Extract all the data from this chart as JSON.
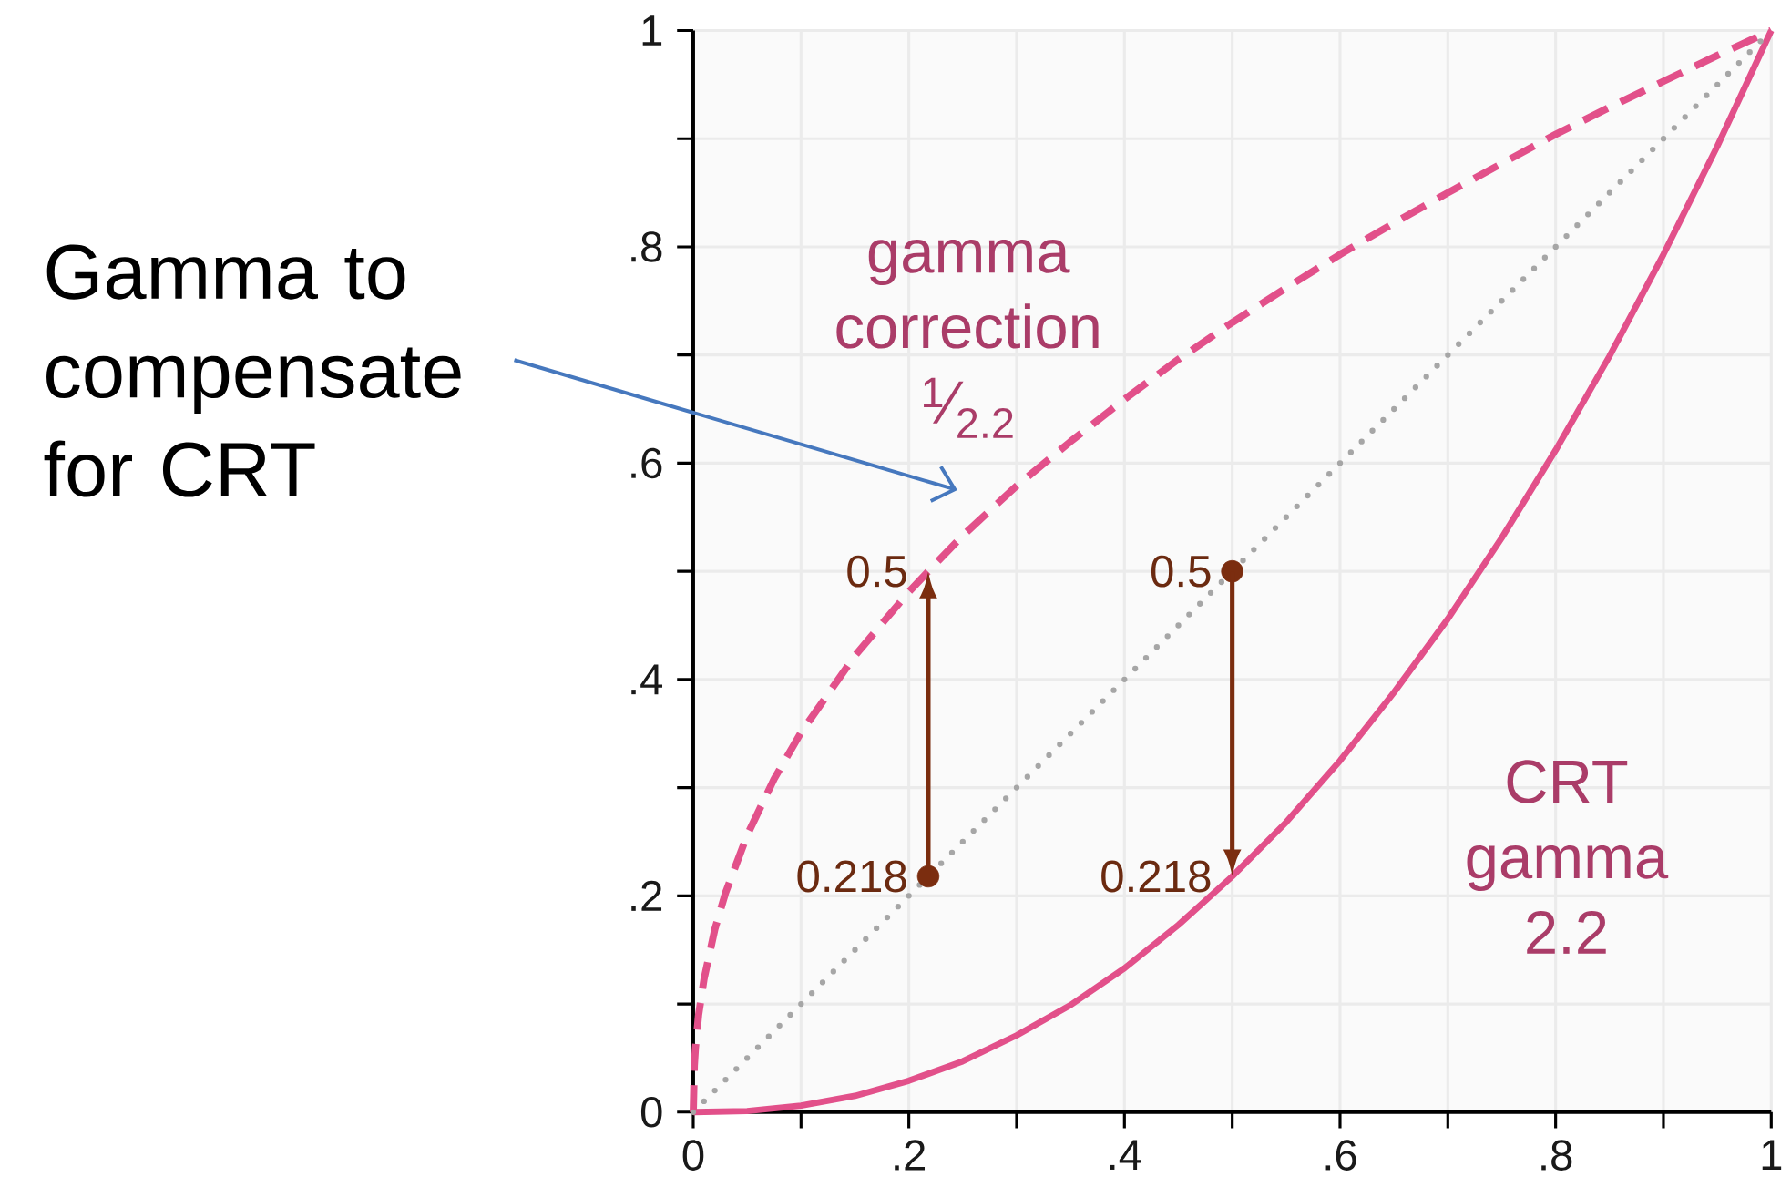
{
  "chart_data": {
    "type": "line",
    "xlim": [
      0,
      1
    ],
    "ylim": [
      0,
      1
    ],
    "xticks": [
      0,
      {
        "value": 0.1,
        "label": null
      },
      {
        "value": 0.2,
        "label": ".2"
      },
      {
        "value": 0.3,
        "label": null
      },
      {
        "value": 0.4,
        "label": ".4"
      },
      {
        "value": 0.5,
        "label": null
      },
      {
        "value": 0.6,
        "label": ".6"
      },
      {
        "value": 0.7,
        "label": null
      },
      {
        "value": 0.8,
        "label": ".8"
      },
      {
        "value": 0.9,
        "label": null
      },
      1
    ],
    "yticks": [
      0,
      {
        "value": 0.1,
        "label": null
      },
      {
        "value": 0.2,
        "label": ".2"
      },
      {
        "value": 0.3,
        "label": null
      },
      {
        "value": 0.4,
        "label": ".4"
      },
      {
        "value": 0.5,
        "label": null
      },
      {
        "value": 0.6,
        "label": ".6"
      },
      {
        "value": 0.7,
        "label": null
      },
      {
        "value": 0.8,
        "label": ".8"
      },
      {
        "value": 0.9,
        "label": null
      },
      1
    ],
    "grid": true,
    "series": [
      {
        "name": "gamma correction $^{1}$⁄$_{2.2}$",
        "color": "#e2508a",
        "line_style": "dashed",
        "marker": "none",
        "x": [
          0,
          0.001,
          0.002,
          0.005,
          0.01,
          0.02,
          0.03,
          0.05,
          0.075,
          0.1,
          0.15,
          0.2,
          0.218,
          0.25,
          0.3,
          0.35,
          0.4,
          0.45,
          0.5,
          0.55,
          0.6,
          0.65,
          0.7,
          0.75,
          0.8,
          0.85,
          0.9,
          0.95,
          1
        ],
        "values": [
          0,
          0.043,
          0.059,
          0.09,
          0.123,
          0.169,
          0.203,
          0.256,
          0.308,
          0.351,
          0.422,
          0.481,
          0.5,
          0.533,
          0.579,
          0.62,
          0.659,
          0.696,
          0.73,
          0.762,
          0.793,
          0.822,
          0.85,
          0.877,
          0.904,
          0.929,
          0.953,
          0.977,
          1
        ],
        "value_labels": [
          null,
          null,
          null,
          null,
          null,
          null,
          null,
          null,
          null,
          null,
          null,
          null,
          "0.5",
          null,
          null,
          null,
          null,
          null,
          null,
          null,
          null,
          null,
          null,
          null,
          null,
          null,
          null,
          null,
          null
        ]
      },
      {
        "name": "CRT gamma 2.2",
        "color": "#e2508a",
        "line_style": "solid",
        "marker": "none",
        "x": [
          0,
          0.05,
          0.1,
          0.15,
          0.2,
          0.25,
          0.3,
          0.35,
          0.4,
          0.45,
          0.5,
          0.55,
          0.6,
          0.65,
          0.7,
          0.75,
          0.8,
          0.85,
          0.9,
          0.95,
          1
        ],
        "values": [
          0,
          0.001,
          0.006,
          0.015,
          0.029,
          0.047,
          0.071,
          0.099,
          0.133,
          0.173,
          0.218,
          0.268,
          0.325,
          0.388,
          0.456,
          0.531,
          0.612,
          0.699,
          0.793,
          0.893,
          1
        ],
        "value_labels": [
          null,
          null,
          null,
          null,
          null,
          null,
          null,
          null,
          null,
          null,
          "0.218",
          null,
          null,
          null,
          null,
          null,
          null,
          null,
          null,
          null,
          null
        ]
      },
      {
        "color": "#a6a6a6",
        "line_style": "dotted",
        "marker": "none",
        "x": [
          0,
          1
        ],
        "values": [
          0,
          1
        ]
      },
      {
        "type": "scatter",
        "color": "#7b2d0f",
        "marker": "circle",
        "x": [
          0.218,
          0.5
        ],
        "values": [
          0.218,
          0.5
        ],
        "value_labels": [
          "0.218",
          "0.5"
        ]
      }
    ],
    "annotations": [
      "Gamma to compensate for CRT"
    ]
  }
}
